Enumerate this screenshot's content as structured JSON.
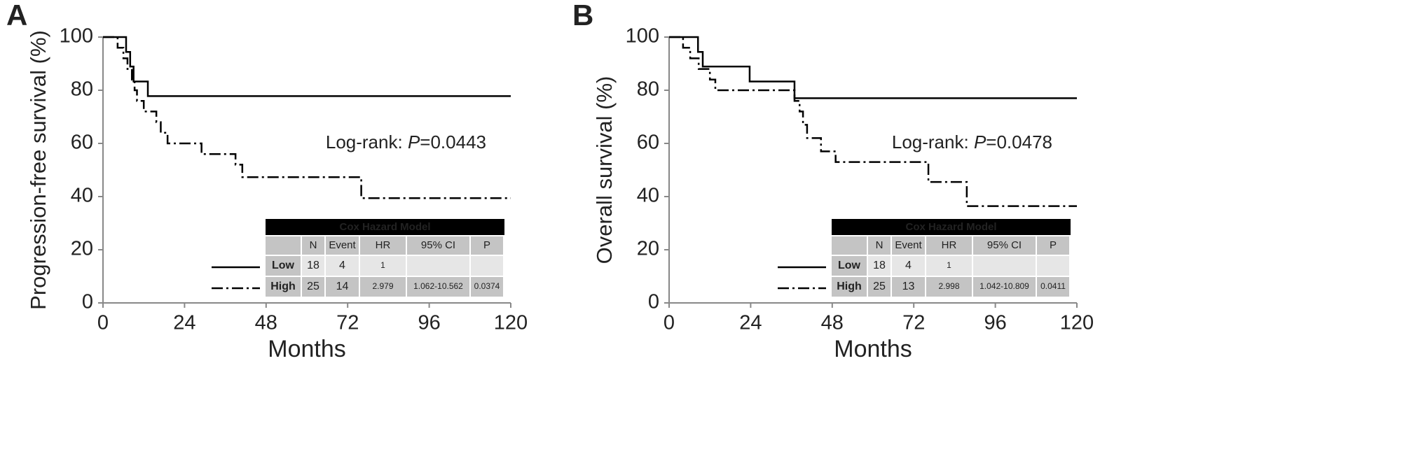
{
  "chart_data": [
    {
      "type": "line",
      "step": "post",
      "panel_label": "A",
      "xlabel": "Months",
      "ylabel": "Progression-free survival (%)",
      "xlim": [
        0,
        120
      ],
      "xticks": [
        0,
        24,
        48,
        72,
        96,
        120
      ],
      "ylim": [
        0,
        100
      ],
      "yticks": [
        0,
        20,
        40,
        60,
        80,
        100
      ],
      "annotation": [
        "Log-rank: ",
        "P",
        "=0.0443"
      ],
      "series": [
        {
          "name": "Low",
          "color": "#000000",
          "dash": "solid",
          "x": [
            0,
            6.8,
            8,
            9,
            13.2,
            120
          ],
          "values": [
            100,
            94.4,
            88.9,
            83.3,
            77.8,
            77.8
          ]
        },
        {
          "name": "High",
          "color": "#000000",
          "dash": "dashdot",
          "x": [
            0,
            4.3,
            6,
            7.2,
            8.5,
            9.3,
            10,
            12,
            15.7,
            17,
            19,
            29,
            39,
            41,
            76,
            120
          ],
          "values": [
            100,
            96,
            92,
            88,
            84,
            80,
            76,
            72,
            68,
            64,
            60,
            56,
            52,
            47.3,
            39.4,
            39.4
          ]
        }
      ],
      "table": {
        "title": "Cox Hazard Model",
        "columns": [
          "N",
          "Event",
          "HR",
          "95% CI",
          "P"
        ],
        "rows": [
          [
            18,
            4,
            1
          ],
          [
            25,
            14,
            2.979,
            "1.062-10.562",
            0.0374
          ]
        ]
      }
    },
    {
      "type": "line",
      "step": "post",
      "panel_label": "B",
      "xlabel": "Months",
      "ylabel": "Overall survival (%)",
      "xlim": [
        0,
        120
      ],
      "xticks": [
        0,
        24,
        48,
        72,
        96,
        120
      ],
      "ylim": [
        0,
        100
      ],
      "yticks": [
        0,
        20,
        40,
        60,
        80,
        100
      ],
      "annotation": [
        "Log-rank: ",
        "P",
        "=0.0478"
      ],
      "series": [
        {
          "name": "Low",
          "color": "#000000",
          "dash": "solid",
          "x": [
            0,
            8.5,
            9.9,
            23.7,
            36.9,
            120
          ],
          "values": [
            100,
            94.4,
            88.9,
            83.3,
            77,
            77
          ]
        },
        {
          "name": "High",
          "color": "#000000",
          "dash": "dashdot",
          "x": [
            0,
            4.1,
            6.2,
            8.7,
            12,
            13.6,
            36.9,
            38.4,
            39.4,
            40.6,
            44.7,
            49,
            76.3,
            87.6,
            120
          ],
          "values": [
            100,
            96,
            92,
            88,
            84,
            80,
            76,
            72,
            67,
            62,
            57,
            53,
            45.5,
            36.4,
            36.4
          ]
        }
      ],
      "table": {
        "title": "Cox Hazard Model",
        "columns": [
          "N",
          "Event",
          "HR",
          "95% CI",
          "P"
        ],
        "rows": [
          [
            18,
            4,
            1
          ],
          [
            25,
            13,
            2.998,
            "1.042-10.809",
            0.0411
          ]
        ]
      }
    }
  ]
}
